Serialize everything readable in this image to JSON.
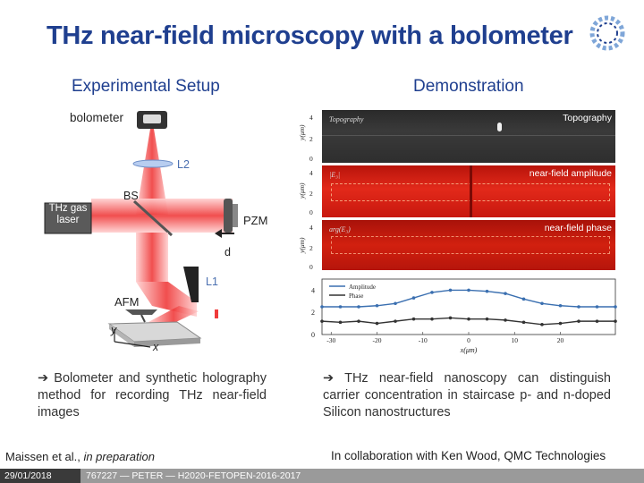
{
  "slide": {
    "title": "THz near-field microscopy with a bolometer",
    "setup_heading": "Experimental Setup",
    "demo_heading": "Demonstration",
    "setup_text": "➔ Bolometer and synthetic holography method for recording THz near-field images",
    "demo_text": "➔ THz near-field nanoscopy can distinguish carrier concentration in staircase p- and n-doped Silicon nanostructures",
    "citation_prefix": "Maissen et al., ",
    "citation_italic": "in preparation",
    "collaboration": "In collaboration with Ken Wood, QMC Technologies"
  },
  "setup_diagram": {
    "bolometer": "bolometer",
    "l2": "L2",
    "bs": "BS",
    "laser": "THz gas laser",
    "pzm": "PZM",
    "d": "d",
    "l1": "L1",
    "afm": "AFM",
    "y_axis": "y",
    "x_axis": "x"
  },
  "demo_panels": {
    "topography_label": "Topography",
    "topography_inner": "Topography",
    "amplitude_label": "near-field amplitude",
    "amplitude_inner": "|E₃|",
    "phase_label": "near-field phase",
    "phase_inner": "arg(E₃)",
    "y_axis_label": "y(μm)",
    "y_ticks": [
      "4",
      "2",
      "0"
    ]
  },
  "chart_data": {
    "type": "line",
    "title": "",
    "xlabel": "x(μm)",
    "ylabel": "",
    "xlim": [
      -32,
      32
    ],
    "ylim": [
      0,
      5
    ],
    "x_ticks": [
      "-30",
      "-20",
      "-10",
      "0",
      "10",
      "20"
    ],
    "y_ticks": [
      "4",
      "2",
      "0"
    ],
    "legend": [
      "Amplitude",
      "Phase"
    ],
    "legend_position": "top-left",
    "series": [
      {
        "name": "Amplitude",
        "color": "#3a6fb0",
        "x": [
          -32,
          -28,
          -24,
          -20,
          -16,
          -12,
          -8,
          -4,
          0,
          4,
          8,
          12,
          16,
          20,
          24,
          28,
          32
        ],
        "y": [
          2.5,
          2.5,
          2.5,
          2.6,
          2.8,
          3.3,
          3.8,
          4.0,
          4.0,
          3.9,
          3.7,
          3.2,
          2.8,
          2.6,
          2.5,
          2.5,
          2.5
        ]
      },
      {
        "name": "Phase",
        "color": "#333333",
        "x": [
          -32,
          -28,
          -24,
          -20,
          -16,
          -12,
          -8,
          -4,
          0,
          4,
          8,
          12,
          16,
          20,
          24,
          28,
          32
        ],
        "y": [
          1.2,
          1.1,
          1.2,
          1.0,
          1.2,
          1.4,
          1.4,
          1.5,
          1.4,
          1.4,
          1.3,
          1.1,
          0.9,
          1.0,
          1.2,
          1.2,
          1.2
        ]
      }
    ]
  },
  "footer": {
    "date": "29/01/2018",
    "project": "767227 — PETER — H2020-FETOPEN-2016-2017"
  },
  "colors": {
    "title": "#1f3f8f",
    "beam": "#ef3b3b",
    "amplitude_panel": "#d81a0f",
    "phase_panel": "#c8150c",
    "footer": "#9a9a9a"
  }
}
